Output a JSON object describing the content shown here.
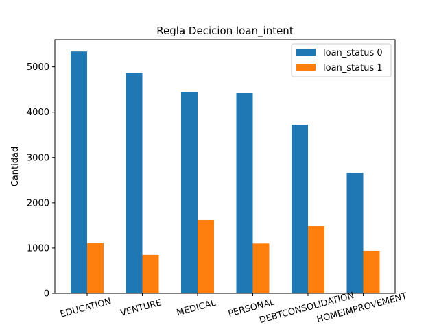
{
  "chart_data": {
    "type": "bar",
    "title": "Regla Decicion loan_intent",
    "xlabel": "",
    "ylabel": "Cantidad",
    "categories": [
      "EDUCATION",
      "VENTURE",
      "MEDICAL",
      "PERSONAL",
      "DEBTCONSOLIDATION",
      "HOMEIMPROVEMENT"
    ],
    "series": [
      {
        "name": "loan_status 0",
        "color": "#1f77b4",
        "values": [
          5340,
          4870,
          4450,
          4420,
          3720,
          2660
        ]
      },
      {
        "name": "loan_status 1",
        "color": "#ff7f0e",
        "values": [
          1110,
          850,
          1620,
          1100,
          1490,
          940
        ]
      }
    ],
    "ylim": [
      0,
      5600
    ],
    "yticks": [
      0,
      1000,
      2000,
      3000,
      4000,
      5000
    ],
    "legend_position": "top-right",
    "grid": false
  }
}
